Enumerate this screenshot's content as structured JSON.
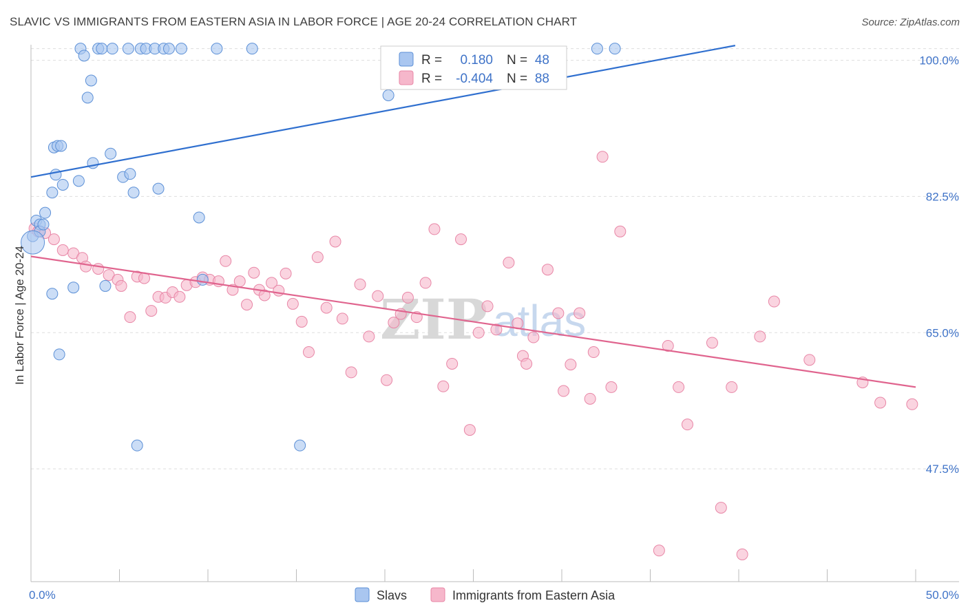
{
  "title": "SLAVIC VS IMMIGRANTS FROM EASTERN ASIA IN LABOR FORCE | AGE 20-24 CORRELATION CHART",
  "source": "Source: ZipAtlas.com",
  "watermark": {
    "zip": "ZIP",
    "atlas": "atlas"
  },
  "colors": {
    "slavs_fill": "#a9c6f0",
    "slavs_stroke": "#5b8fd6",
    "slavs_line": "#2f6fcf",
    "asia_fill": "#f6b7cb",
    "asia_stroke": "#e886a6",
    "asia_line": "#e0648e",
    "grid": "#dddddd",
    "tick_text": "#3f73c8"
  },
  "legend": {
    "rows": [
      {
        "r_label": "R =",
        "r_value": "0.180",
        "n_label": "N =",
        "n_value": "48"
      },
      {
        "r_label": "R =",
        "r_value": "-0.404",
        "n_label": "N =",
        "n_value": "88"
      }
    ]
  },
  "chart_data": {
    "type": "scatter",
    "title": "SLAVIC VS IMMIGRANTS FROM EASTERN ASIA IN LABOR FORCE | AGE 20-24 CORRELATION CHART",
    "xlabel": "",
    "ylabel": "In Labor Force | Age 20-24",
    "xlim": [
      0,
      50
    ],
    "ylim": [
      33,
      102
    ],
    "x_tick_labels": [
      "0.0%",
      "50.0%"
    ],
    "y_ticks": [
      47.5,
      65.0,
      82.5,
      100.0
    ],
    "y_tick_labels": [
      "47.5%",
      "65.0%",
      "82.5%",
      "100.0%"
    ],
    "grid": true,
    "legend_position": "top-center",
    "series": [
      {
        "name": "Slavs",
        "r": 0.18,
        "n": 48,
        "trend": {
          "x": [
            0,
            39.8
          ],
          "y": [
            85.0,
            101.9
          ]
        },
        "points": [
          [
            0.1,
            77.4
          ],
          [
            0.3,
            79.4
          ],
          [
            0.5,
            78.9
          ],
          [
            0.5,
            78.0
          ],
          [
            0.7,
            78.9
          ],
          [
            0.8,
            80.4
          ],
          [
            1.2,
            83.0
          ],
          [
            1.2,
            70.0
          ],
          [
            1.3,
            88.8
          ],
          [
            1.4,
            85.3
          ],
          [
            1.5,
            89.0
          ],
          [
            1.6,
            62.2
          ],
          [
            1.7,
            89.0
          ],
          [
            1.8,
            84.0
          ],
          [
            2.4,
            70.8
          ],
          [
            2.7,
            84.5
          ],
          [
            2.8,
            101.5
          ],
          [
            3.0,
            100.6
          ],
          [
            3.2,
            95.2
          ],
          [
            3.4,
            97.4
          ],
          [
            3.5,
            86.8
          ],
          [
            3.8,
            101.5
          ],
          [
            4.0,
            101.5
          ],
          [
            4.2,
            71.0
          ],
          [
            4.5,
            88.0
          ],
          [
            4.6,
            101.5
          ],
          [
            5.2,
            85.0
          ],
          [
            5.5,
            101.5
          ],
          [
            5.6,
            85.4
          ],
          [
            5.8,
            83.0
          ],
          [
            6.0,
            50.5
          ],
          [
            6.2,
            101.5
          ],
          [
            6.5,
            101.5
          ],
          [
            7.0,
            101.5
          ],
          [
            7.2,
            83.5
          ],
          [
            7.5,
            101.5
          ],
          [
            7.8,
            101.5
          ],
          [
            8.5,
            101.5
          ],
          [
            9.5,
            79.8
          ],
          [
            9.7,
            71.8
          ],
          [
            10.5,
            101.5
          ],
          [
            12.5,
            101.5
          ],
          [
            15.2,
            50.5
          ],
          [
            20.2,
            95.5
          ],
          [
            32.0,
            101.5
          ],
          [
            33.0,
            101.5
          ]
        ]
      },
      {
        "name": "Immigrants from Eastern Asia",
        "r": -0.404,
        "n": 88,
        "trend": {
          "x": [
            0,
            50
          ],
          "y": [
            74.8,
            58.0
          ]
        },
        "points": [
          [
            0.2,
            78.4
          ],
          [
            0.4,
            78.0
          ],
          [
            0.8,
            77.8
          ],
          [
            1.3,
            77.0
          ],
          [
            1.8,
            75.6
          ],
          [
            2.4,
            75.2
          ],
          [
            2.9,
            74.6
          ],
          [
            3.1,
            73.5
          ],
          [
            3.8,
            73.2
          ],
          [
            4.4,
            72.4
          ],
          [
            4.9,
            71.8
          ],
          [
            5.1,
            71.0
          ],
          [
            5.6,
            67.0
          ],
          [
            6.0,
            72.2
          ],
          [
            6.4,
            72.0
          ],
          [
            6.8,
            67.8
          ],
          [
            7.2,
            69.6
          ],
          [
            7.6,
            69.5
          ],
          [
            8.0,
            70.2
          ],
          [
            8.4,
            69.6
          ],
          [
            8.8,
            71.1
          ],
          [
            9.3,
            71.5
          ],
          [
            9.7,
            72.1
          ],
          [
            10.1,
            71.8
          ],
          [
            10.6,
            71.6
          ],
          [
            11.0,
            74.2
          ],
          [
            11.4,
            70.5
          ],
          [
            11.8,
            71.6
          ],
          [
            12.2,
            68.6
          ],
          [
            12.6,
            72.7
          ],
          [
            12.9,
            70.5
          ],
          [
            13.2,
            69.8
          ],
          [
            13.6,
            71.4
          ],
          [
            14.0,
            70.4
          ],
          [
            14.4,
            72.6
          ],
          [
            14.8,
            68.7
          ],
          [
            15.3,
            66.4
          ],
          [
            15.7,
            62.5
          ],
          [
            16.2,
            74.7
          ],
          [
            16.7,
            68.2
          ],
          [
            17.2,
            76.7
          ],
          [
            17.6,
            66.8
          ],
          [
            18.1,
            59.9
          ],
          [
            18.6,
            71.2
          ],
          [
            19.1,
            64.5
          ],
          [
            19.6,
            69.7
          ],
          [
            20.1,
            58.9
          ],
          [
            20.5,
            66.3
          ],
          [
            20.9,
            67.4
          ],
          [
            21.3,
            69.5
          ],
          [
            21.8,
            67.0
          ],
          [
            22.3,
            71.4
          ],
          [
            22.8,
            78.3
          ],
          [
            23.3,
            58.1
          ],
          [
            23.8,
            61.0
          ],
          [
            24.3,
            77.0
          ],
          [
            24.8,
            52.5
          ],
          [
            25.3,
            65.0
          ],
          [
            25.8,
            68.4
          ],
          [
            26.3,
            65.4
          ],
          [
            27.0,
            74.0
          ],
          [
            27.5,
            66.2
          ],
          [
            27.8,
            62.0
          ],
          [
            28.0,
            61.0
          ],
          [
            28.4,
            64.4
          ],
          [
            29.2,
            73.1
          ],
          [
            29.8,
            67.5
          ],
          [
            30.1,
            57.5
          ],
          [
            30.5,
            60.9
          ],
          [
            31.0,
            67.5
          ],
          [
            31.6,
            56.5
          ],
          [
            31.8,
            62.5
          ],
          [
            32.3,
            87.6
          ],
          [
            32.8,
            58.0
          ],
          [
            33.3,
            78.0
          ],
          [
            35.5,
            37.0
          ],
          [
            36.0,
            63.3
          ],
          [
            36.6,
            58.0
          ],
          [
            37.1,
            53.2
          ],
          [
            38.5,
            63.7
          ],
          [
            39.0,
            42.5
          ],
          [
            39.6,
            58.0
          ],
          [
            40.2,
            36.5
          ],
          [
            41.2,
            64.5
          ],
          [
            42.0,
            69.0
          ],
          [
            44.0,
            61.5
          ],
          [
            47.0,
            58.6
          ],
          [
            48.0,
            56.0
          ],
          [
            49.8,
            55.8
          ]
        ]
      }
    ]
  }
}
